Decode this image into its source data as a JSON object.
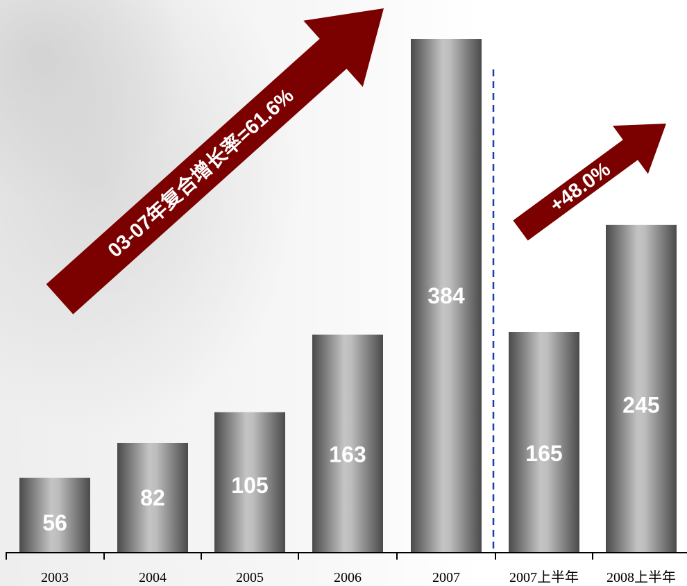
{
  "chart_data": {
    "type": "bar",
    "categories": [
      "2003",
      "2004",
      "2005",
      "2006",
      "2007",
      "2007上半年",
      "2008上半年"
    ],
    "values": [
      56,
      82,
      105,
      163,
      384,
      165,
      245
    ],
    "data_labels": [
      "56",
      "82",
      "105",
      "163",
      "384",
      "165",
      "245"
    ],
    "ylim": [
      0,
      400
    ],
    "grid": false,
    "legend": "none",
    "annotations": [
      {
        "text": "03-07年复合增长率=61.6%",
        "kind": "arrow",
        "from_category": "2003",
        "to_category": "2007"
      },
      {
        "text": "+48.0%",
        "kind": "arrow",
        "from_category": "2007上半年",
        "to_category": "2008上半年"
      }
    ],
    "divider": {
      "after_category": "2007",
      "style": "dashed"
    }
  },
  "colors": {
    "bar_dark": "#4a4a4a",
    "bar_light": "#c4c4c4",
    "arrow": "#7b0000",
    "divider": "#1a3fa8",
    "axis": "#000000",
    "label_text": "#ffffff"
  }
}
